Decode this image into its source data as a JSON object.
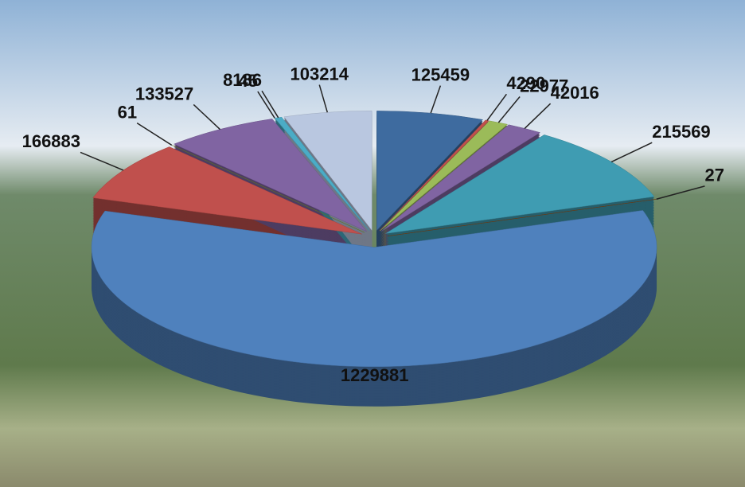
{
  "chart_data": {
    "type": "pie",
    "values": [
      125459,
      4290,
      22977,
      42016,
      215569,
      27,
      1229881,
      166883,
      61,
      133527,
      45,
      8186,
      103214
    ],
    "colors": [
      "#3e6b9f",
      "#c0504d",
      "#9bbb59",
      "#8064a2",
      "#3f9cb2",
      "#7a4416",
      "#4f81bd",
      "#c0504d",
      "#6f8a2c",
      "#8064a2",
      "#4bacc6",
      "#4bacc6",
      "#b9c7e0"
    ],
    "exploded": true,
    "three_d": true
  }
}
